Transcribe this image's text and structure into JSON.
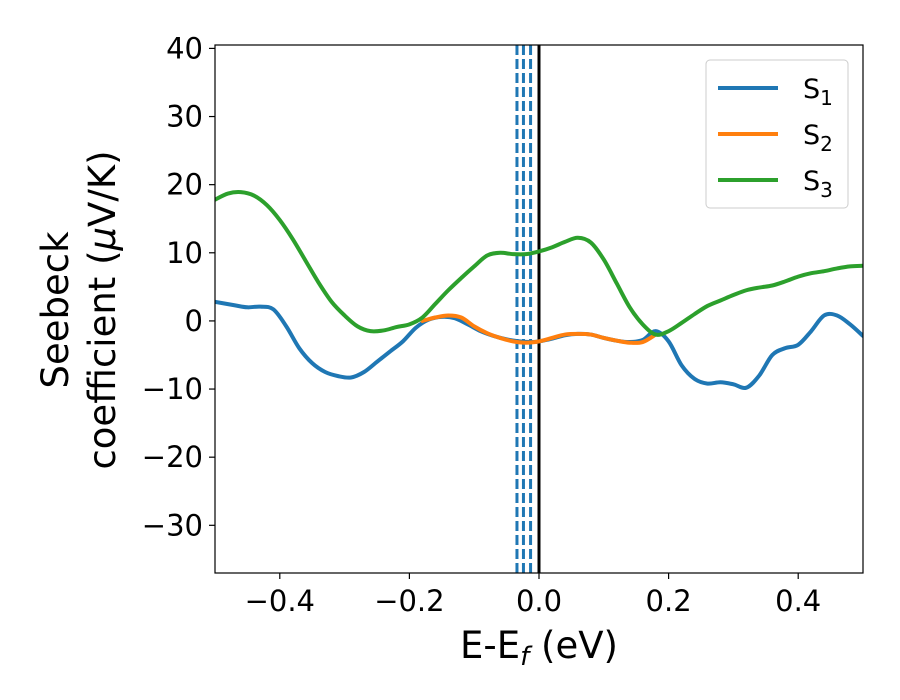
{
  "chart_data": {
    "type": "line",
    "title": "",
    "xlabel": {
      "main": "E-E",
      "sub": "f",
      "tail": " (eV)"
    },
    "ylabel": {
      "line1": "Seebeck",
      "line2_pre": "coefficient  (",
      "line2_mu": "μ",
      "line2_post": "V/K)"
    },
    "xlim": [
      -0.5,
      0.5
    ],
    "ylim": [
      -37,
      40.5
    ],
    "x_ticks": [
      -0.4,
      -0.2,
      0.0,
      0.2,
      0.4
    ],
    "x_tick_labels": [
      "−0.4",
      "−0.2",
      "0.0",
      "0.2",
      "0.4"
    ],
    "y_ticks": [
      -30,
      -20,
      -10,
      0,
      10,
      20,
      30,
      40
    ],
    "y_tick_labels": [
      "−30",
      "−20",
      "−10",
      "0",
      "10",
      "20",
      "30",
      "40"
    ],
    "grid": false,
    "legend_position": "top-right",
    "vertical_lines": [
      {
        "x": -0.034,
        "style": "dashed",
        "color": "#1f77b4"
      },
      {
        "x": -0.024,
        "style": "dashed",
        "color": "#1f77b4"
      },
      {
        "x": -0.013,
        "style": "dashed",
        "color": "#1f77b4"
      },
      {
        "x": 0.0,
        "style": "solid",
        "color": "#000000"
      }
    ],
    "series": [
      {
        "name": "S",
        "subscript": "1",
        "color": "#1f77b4",
        "x": [
          -0.5,
          -0.47,
          -0.45,
          -0.43,
          -0.41,
          -0.39,
          -0.37,
          -0.35,
          -0.33,
          -0.31,
          -0.29,
          -0.27,
          -0.25,
          -0.23,
          -0.21,
          -0.19,
          -0.17,
          -0.15,
          -0.13,
          -0.11,
          -0.09,
          -0.07,
          -0.05,
          -0.03,
          -0.01,
          0.0,
          0.02,
          0.04,
          0.06,
          0.08,
          0.1,
          0.12,
          0.14,
          0.16,
          0.18,
          0.2,
          0.22,
          0.24,
          0.26,
          0.28,
          0.3,
          0.32,
          0.34,
          0.36,
          0.38,
          0.4,
          0.42,
          0.44,
          0.46,
          0.48,
          0.5
        ],
        "values": [
          2.8,
          2.3,
          2.0,
          2.1,
          1.7,
          -0.8,
          -4.0,
          -6.2,
          -7.5,
          -8.1,
          -8.3,
          -7.5,
          -6.0,
          -4.5,
          -3.0,
          -1.0,
          0.2,
          0.6,
          0.4,
          -0.5,
          -1.5,
          -2.2,
          -2.7,
          -3.0,
          -3.1,
          -3.0,
          -2.6,
          -2.1,
          -1.9,
          -2.0,
          -2.5,
          -2.9,
          -3.1,
          -2.8,
          -1.5,
          -3.0,
          -6.5,
          -8.5,
          -9.2,
          -9.0,
          -9.3,
          -9.8,
          -8.0,
          -5.0,
          -4.0,
          -3.5,
          -1.5,
          0.8,
          0.8,
          -0.5,
          -2.2
        ]
      },
      {
        "name": "S",
        "subscript": "2",
        "color": "#ff7f0e",
        "x": [
          -0.18,
          -0.16,
          -0.14,
          -0.12,
          -0.1,
          -0.08,
          -0.06,
          -0.04,
          -0.02,
          0.0,
          0.02,
          0.04,
          0.06,
          0.08,
          0.1,
          0.12,
          0.14,
          0.16,
          0.18
        ],
        "values": [
          0.0,
          0.5,
          0.8,
          0.5,
          -0.8,
          -1.8,
          -2.5,
          -3.0,
          -3.2,
          -3.0,
          -2.5,
          -2.0,
          -1.9,
          -2.0,
          -2.5,
          -2.9,
          -3.2,
          -3.1,
          -2.0
        ]
      },
      {
        "name": "S",
        "subscript": "3",
        "color": "#2ca02c",
        "x": [
          -0.5,
          -0.48,
          -0.46,
          -0.44,
          -0.42,
          -0.4,
          -0.38,
          -0.36,
          -0.34,
          -0.32,
          -0.3,
          -0.28,
          -0.26,
          -0.24,
          -0.22,
          -0.2,
          -0.18,
          -0.16,
          -0.14,
          -0.12,
          -0.1,
          -0.08,
          -0.06,
          -0.04,
          -0.02,
          0.0,
          0.02,
          0.04,
          0.06,
          0.08,
          0.1,
          0.12,
          0.14,
          0.16,
          0.18,
          0.2,
          0.22,
          0.24,
          0.26,
          0.28,
          0.3,
          0.32,
          0.34,
          0.36,
          0.38,
          0.4,
          0.42,
          0.44,
          0.46,
          0.48,
          0.5
        ],
        "values": [
          17.8,
          18.7,
          18.9,
          18.4,
          17.0,
          14.8,
          12.0,
          8.8,
          5.6,
          2.8,
          0.8,
          -0.8,
          -1.5,
          -1.4,
          -0.9,
          -0.5,
          0.5,
          2.5,
          4.5,
          6.3,
          8.0,
          9.6,
          10.0,
          9.8,
          9.8,
          10.2,
          10.8,
          11.6,
          12.2,
          11.5,
          9.0,
          5.5,
          2.0,
          -0.5,
          -2.0,
          -1.5,
          -0.3,
          1.0,
          2.2,
          3.0,
          3.8,
          4.5,
          4.9,
          5.2,
          5.8,
          6.5,
          7.0,
          7.3,
          7.7,
          8.0,
          8.1
        ]
      }
    ]
  }
}
